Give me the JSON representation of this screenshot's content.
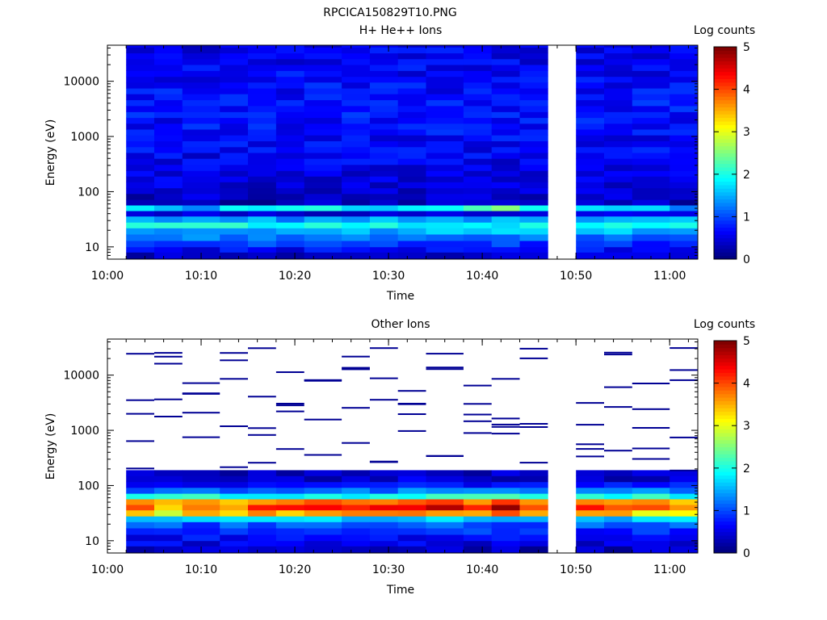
{
  "figure_title": "RPCICA150829T10.PNG",
  "chart_data": [
    {
      "type": "heatmap",
      "title": "H+ He++ Ions",
      "xlabel": "Time",
      "ylabel": "Energy (eV)",
      "y_scale": "log",
      "x_range": [
        "10:00",
        "11:03"
      ],
      "y_range": [
        6,
        45000
      ],
      "x_ticks": [
        "10:00",
        "10:10",
        "10:20",
        "10:30",
        "10:40",
        "10:50",
        "11:00"
      ],
      "y_ticks": [
        "10",
        "100",
        "1000",
        "10000"
      ],
      "x_bins": [
        "10:02-10:05",
        "10:05-10:08",
        "10:08-10:12",
        "10:12-10:15",
        "10:15-10:18",
        "10:18-10:21",
        "10:21-10:25",
        "10:25-10:28",
        "10:28-10:31",
        "10:31-10:34",
        "10:34-10:38",
        "10:38-10:41",
        "10:41-10:44",
        "10:44-10:47",
        "10:50-10:53",
        "10:53-10:56",
        "10:56-11:00",
        "11:00-11:03"
      ],
      "data_gap": [
        "10:47",
        "10:50"
      ],
      "energy_band_edges_eV": [
        6,
        8,
        10,
        13,
        17,
        22,
        28,
        36,
        45,
        57,
        72,
        92,
        117,
        150,
        190,
        240,
        310,
        400,
        510,
        650,
        830,
        1060,
        1350,
        1720,
        2200,
        2800,
        3600,
        4600,
        5900,
        7500,
        9600,
        12200,
        15600,
        20000,
        25500,
        32500,
        41500,
        45000
      ],
      "typical_log_counts_by_band": [
        0.3,
        0.6,
        0.9,
        1.2,
        1.5,
        1.9,
        1.4,
        0.7,
        0.4,
        0.4,
        0.35,
        0.4,
        0.45,
        0.45,
        0.5,
        0.5,
        0.55,
        0.55,
        0.6,
        0.6,
        0.6,
        0.65,
        0.65,
        0.65,
        0.7,
        0.7,
        0.7,
        0.65,
        0.65,
        0.65,
        0.6,
        0.6,
        0.6,
        0.55,
        0.55,
        0.55,
        0.5
      ],
      "peak_log_counts_45_57eV": [
        1.8,
        1.5,
        1.5,
        1.9,
        1.6,
        1.7,
        1.8,
        1.7,
        1.7,
        1.9,
        1.9,
        2.0,
        2.7,
        1.8,
        1.7,
        1.8,
        1.9,
        1.3
      ],
      "colorbar": {
        "label": "Log counts",
        "range": [
          0,
          5
        ],
        "ticks": [
          "0",
          "1",
          "2",
          "3",
          "4",
          "5"
        ]
      },
      "colormap": "jet",
      "background": "#ffffff"
    },
    {
      "type": "heatmap",
      "title": "Other Ions",
      "xlabel": "Time",
      "ylabel": "Energy (eV)",
      "y_scale": "log",
      "x_range": [
        "10:00",
        "11:03"
      ],
      "y_range": [
        6,
        45000
      ],
      "x_ticks": [
        "10:00",
        "10:10",
        "10:20",
        "10:30",
        "10:40",
        "10:50",
        "11:00"
      ],
      "y_ticks": [
        "10",
        "100",
        "1000",
        "10000"
      ],
      "x_bins": [
        "10:02-10:05",
        "10:05-10:08",
        "10:08-10:12",
        "10:12-10:15",
        "10:15-10:18",
        "10:18-10:21",
        "10:21-10:25",
        "10:25-10:28",
        "10:28-10:31",
        "10:31-10:34",
        "10:34-10:38",
        "10:38-10:41",
        "10:41-10:44",
        "10:44-10:47",
        "10:50-10:53",
        "10:53-10:56",
        "10:56-11:00",
        "11:00-11:03"
      ],
      "data_gap": [
        "10:47",
        "10:50"
      ],
      "energy_band_edges_eV": [
        6,
        8,
        10,
        13,
        17,
        22,
        28,
        36,
        45,
        57,
        72,
        92,
        117,
        150,
        190
      ],
      "typical_log_counts_by_band": [
        0.3,
        0.5,
        0.6,
        0.8,
        1.0,
        1.6,
        3.0,
        4.2,
        3.2,
        2.0,
        1.2,
        0.7,
        0.4,
        0.3
      ],
      "peak_log_counts_36_45eV": [
        4.2,
        3.5,
        4.0,
        3.7,
        4.3,
        4.3,
        4.4,
        4.3,
        4.3,
        4.4,
        4.6,
        4.1,
        4.7,
        4.0,
        4.3,
        4.1,
        3.8,
        3.5
      ],
      "sparse_counts_above_eV": 190,
      "sparse_log_counts": 0.1,
      "colorbar": {
        "label": "Log counts",
        "range": [
          0,
          5
        ],
        "ticks": [
          "0",
          "1",
          "2",
          "3",
          "4",
          "5"
        ]
      },
      "colormap": "jet",
      "background": "#ffffff"
    }
  ]
}
